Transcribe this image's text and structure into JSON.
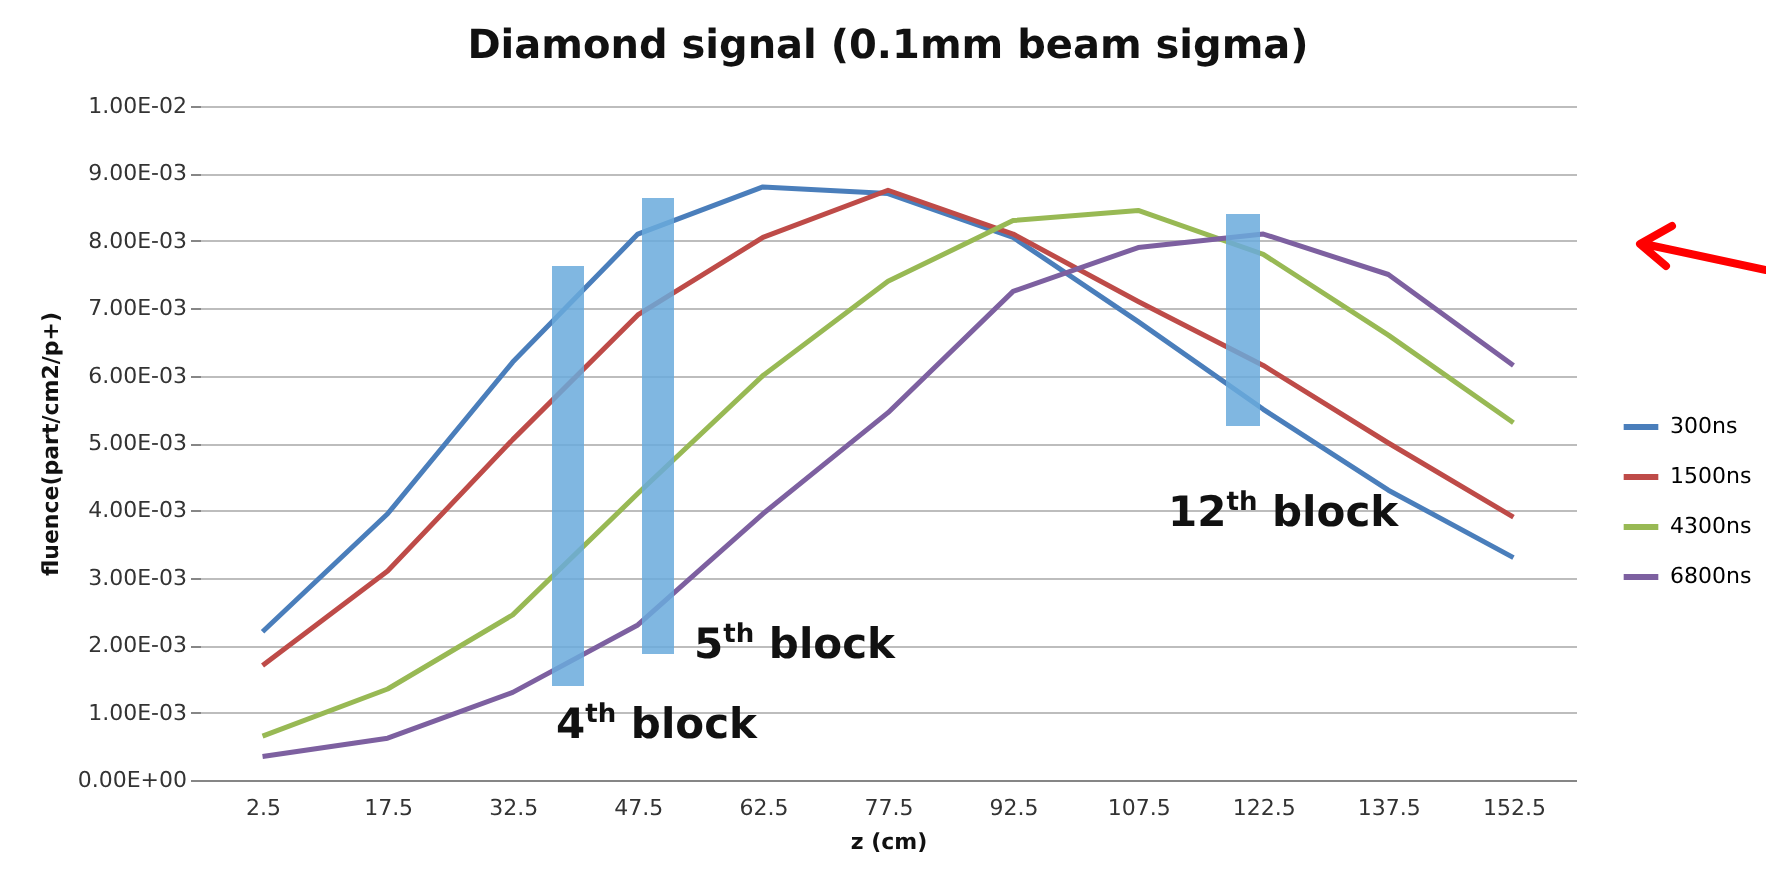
{
  "chart_data": {
    "type": "line",
    "title": "Diamond signal (0.1mm beam sigma)",
    "xlabel": "z (cm)",
    "ylabel": "fluence(part/cm2/p+)",
    "categories": [
      "2.5",
      "17.5",
      "32.5",
      "47.5",
      "62.5",
      "77.5",
      "92.5",
      "107.5",
      "122.5",
      "137.5",
      "152.5"
    ],
    "series": [
      {
        "name": "300ns",
        "color": "#4a7ebb",
        "values": [
          0.0022,
          0.00395,
          0.0062,
          0.0081,
          0.0088,
          0.0087,
          0.00805,
          0.0068,
          0.0055,
          0.0043,
          0.0033
        ]
      },
      {
        "name": "1500ns",
        "color": "#be4b48",
        "values": [
          0.0017,
          0.0031,
          0.00505,
          0.0069,
          0.00805,
          0.00875,
          0.0081,
          0.0071,
          0.00615,
          0.005,
          0.0039
        ]
      },
      {
        "name": "4300ns",
        "color": "#98b954",
        "values": [
          0.00065,
          0.00135,
          0.00245,
          0.00425,
          0.006,
          0.0074,
          0.0083,
          0.00845,
          0.0078,
          0.0066,
          0.0053
        ]
      },
      {
        "name": "6800ns",
        "color": "#7d60a0",
        "values": [
          0.00035,
          0.00062,
          0.0013,
          0.0023,
          0.00395,
          0.00545,
          0.00725,
          0.0079,
          0.0081,
          0.0075,
          0.00615
        ]
      }
    ],
    "ylim": [
      0,
      0.01
    ],
    "yticks": [
      {
        "value": 0,
        "label": "0.00E+00"
      },
      {
        "value": 0.001,
        "label": "1.00E-03"
      },
      {
        "value": 0.002,
        "label": "2.00E-03"
      },
      {
        "value": 0.003,
        "label": "3.00E-03"
      },
      {
        "value": 0.004,
        "label": "4.00E-03"
      },
      {
        "value": 0.005,
        "label": "5.00E-03"
      },
      {
        "value": 0.006,
        "label": "6.00E-03"
      },
      {
        "value": 0.007,
        "label": "7.00E-03"
      },
      {
        "value": 0.008,
        "label": "8.00E-03"
      },
      {
        "value": 0.009,
        "label": "9.00E-03"
      },
      {
        "value": 0.01,
        "label": "1.00E-02"
      }
    ],
    "grid": "y",
    "legend": "right",
    "marker": "none",
    "line_style": "solid",
    "annotations": [
      "4$^{th}$ block",
      "5$^{th}$ block",
      "12$^{th}$ block"
    ]
  }
}
